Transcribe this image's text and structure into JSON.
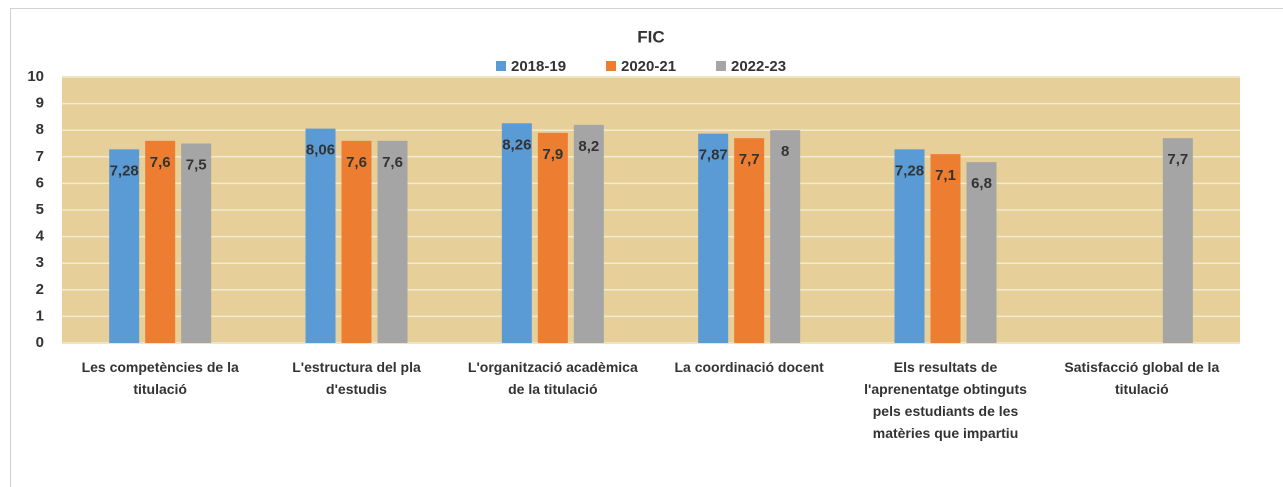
{
  "chart_data": {
    "type": "bar",
    "title": "FIC",
    "categories": [
      "Les competències de la titulació",
      "L'estructura del pla d'estudis",
      "L'organització acadèmica de la titulació",
      "La coordinació docent",
      "Els resultats de l'aprenentatge obtinguts pels estudiants de les matèries que impartiu",
      "Satisfacció global de la titulació"
    ],
    "series": [
      {
        "name": "2018-19",
        "color": "#5b9bd5",
        "values": [
          7.28,
          8.06,
          8.26,
          7.87,
          7.28,
          null
        ],
        "value_labels": [
          "7,28",
          "8,06",
          "8,26",
          "7,87",
          "7,28",
          null
        ]
      },
      {
        "name": "2020-21",
        "color": "#ed7d31",
        "values": [
          7.6,
          7.6,
          7.9,
          7.7,
          7.1,
          null
        ],
        "value_labels": [
          "7,6",
          "7,6",
          "7,9",
          "7,7",
          "7,1",
          null
        ]
      },
      {
        "name": "2022-23",
        "color": "#a5a5a5",
        "values": [
          7.5,
          7.6,
          8.2,
          8,
          6.8,
          7.7
        ],
        "value_labels": [
          "7,5",
          "7,6",
          "8,2",
          "8",
          "6,8",
          "7,7"
        ]
      }
    ],
    "ylim": [
      0,
      10
    ],
    "yticks": [
      0,
      1,
      2,
      3,
      4,
      5,
      6,
      7,
      8,
      9,
      10
    ],
    "grid": true,
    "legend": "top"
  }
}
